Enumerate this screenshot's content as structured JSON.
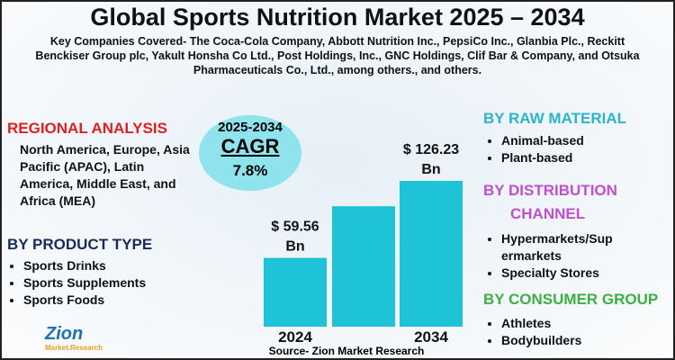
{
  "title": "Global Sports Nutrition Market  2025 – 2034",
  "subtitle": "Key Companies Covered- The Coca-Cola Company, Abbott Nutrition Inc., PepsiCo Inc., Glanbia Plc., Reckitt Benckiser Group plc, Yakult Honsha Co Ltd., Post Holdings, Inc., GNC Holdings, Clif Bar & Company, and Otsuka Pharmaceuticals Co., Ltd., among others., and others.",
  "regional": {
    "heading": "REGIONAL ANALYSIS",
    "text": "North America, Europe, Asia Pacific (APAC), Latin America, Middle East, and Africa (MEA)"
  },
  "product_type": {
    "heading": "BY PRODUCT TYPE",
    "items": [
      "Sports Drinks",
      "Sports Supplements",
      "Sports Foods"
    ]
  },
  "cagr": {
    "period": "2025-2034",
    "label": "CAGR",
    "value": "7.8%"
  },
  "raw_material": {
    "heading": "BY RAW MATERIAL",
    "items": [
      "Animal-based",
      "Plant-based"
    ]
  },
  "distribution": {
    "heading_1": "BY DISTRIBUTION",
    "heading_2": "CHANNEL",
    "items": [
      "Hypermarkets/Sup ermarkets",
      "Specialty Stores"
    ]
  },
  "consumer": {
    "heading": "BY CONSUMER GROUP",
    "items": [
      "Athletes",
      "Bodybuilders"
    ]
  },
  "logo": {
    "name": "Zion",
    "sub": "Market.Research"
  },
  "source": "Source- Zion Market Research",
  "chart_data": {
    "type": "bar",
    "categories": [
      "2024",
      null,
      "2034"
    ],
    "values": [
      59.56,
      104.3,
      126.23
    ],
    "value_labels": [
      "$ 59.56 Bn",
      null,
      "$ 126.23 Bn"
    ],
    "color": "#1fc3d8"
  }
}
